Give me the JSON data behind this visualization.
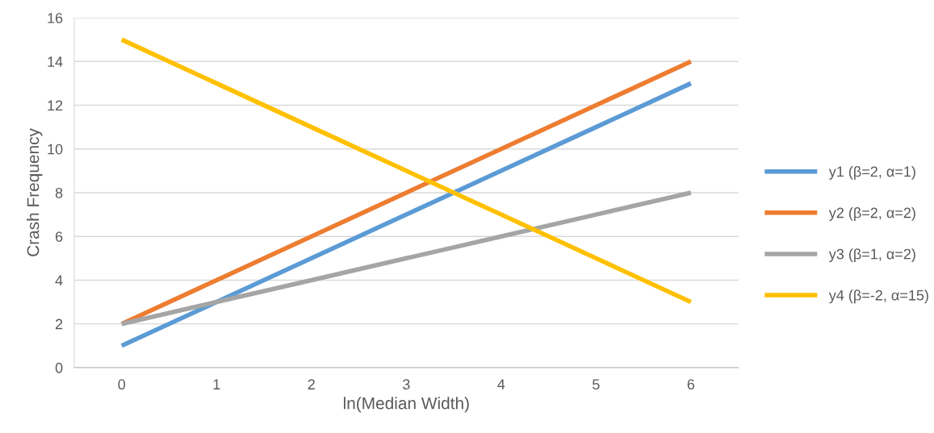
{
  "chart_data": {
    "type": "line",
    "xlabel": "ln(Median Width)",
    "ylabel": "Crash Frequency",
    "x": [
      0,
      1,
      2,
      3,
      4,
      5,
      6
    ],
    "series": [
      {
        "name": "y1 (β=2, α=1)",
        "color": "#5b9bd5",
        "values": [
          1,
          3,
          5,
          7,
          9,
          11,
          13
        ]
      },
      {
        "name": "y2 (β=2, α=2)",
        "color": "#ed7d31",
        "values": [
          2,
          4,
          6,
          8,
          10,
          12,
          14
        ]
      },
      {
        "name": "y3 (β=1, α=2)",
        "color": "#a5a5a5",
        "values": [
          2,
          3,
          4,
          5,
          6,
          7,
          8
        ]
      },
      {
        "name": "y4 (β=-2, α=15)",
        "color": "#ffc000",
        "values": [
          15,
          13,
          11,
          9,
          7,
          5,
          3
        ]
      }
    ],
    "xlim": [
      -0.5,
      6.5
    ],
    "xticks": [
      0,
      1,
      2,
      3,
      4,
      5,
      6
    ],
    "ylim": [
      0,
      16
    ],
    "yticks": [
      0,
      2,
      4,
      6,
      8,
      10,
      12,
      14,
      16
    ],
    "grid": "y",
    "legend": "right",
    "marker": "none",
    "line_style": "solid"
  }
}
